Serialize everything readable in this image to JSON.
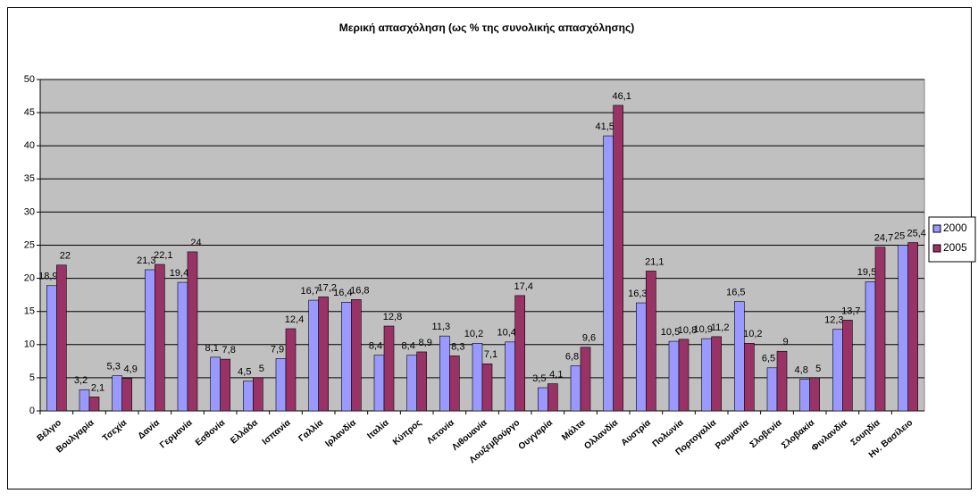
{
  "chart_data": {
    "type": "bar",
    "title": "Μερική απασχόληση (ως % της συνολικής απασχόλησης)",
    "categories": [
      "Βέλγιο",
      "Βουλγαρία",
      "Τσεχία",
      "Δανία",
      "Γερμανία",
      "Εσθονία",
      "Ελλάδα",
      "Ισπανία",
      "Γαλλία",
      "Ιρλανδία",
      "Ιταλία",
      "Κύπρος",
      "Λετονία",
      "Λιθουανία",
      "Λουξεμβούργο",
      "Ουγγαρία",
      "Μάλτα",
      "Ολλανδία",
      "Αυστρία",
      "Πολωνία",
      "Πορτογαλία",
      "Ρουμανία",
      "Σλοβενία",
      "Σλοβακία",
      "Φινλανδία",
      "Σουηδία",
      "Ην. Βασίλειο"
    ],
    "series": [
      {
        "name": "2000",
        "color": "#9999ff",
        "values": [
          18.9,
          3.2,
          5.3,
          21.3,
          19.4,
          8.1,
          4.5,
          7.9,
          16.7,
          16.4,
          8.4,
          8.4,
          11.3,
          10.2,
          10.4,
          3.5,
          6.8,
          41.5,
          16.3,
          10.5,
          10.9,
          16.5,
          6.5,
          4.8,
          12.3,
          19.5,
          25
        ],
        "value_labels": [
          "18,9",
          "3,2",
          "5,3",
          "21,3",
          "19,4",
          "8,1",
          "4,5",
          "7,9",
          "16,7",
          "16,4",
          "8,4",
          "8,4",
          "11,3",
          "10,2",
          "10,4",
          "3,5",
          "6,8",
          "41,5",
          "16,3",
          "10,5",
          "10,9",
          "16,5",
          "6,5",
          "4,8",
          "12,3",
          "19,5",
          "25"
        ]
      },
      {
        "name": "2005",
        "color": "#993366",
        "values": [
          22,
          2.1,
          4.9,
          22.1,
          24,
          7.8,
          5,
          12.4,
          17.2,
          16.8,
          12.8,
          8.9,
          8.3,
          7.1,
          17.4,
          4.1,
          9.6,
          46.1,
          21.1,
          10.8,
          11.2,
          10.2,
          9,
          5,
          13.7,
          24.7,
          25.4
        ],
        "value_labels": [
          "22",
          "2,1",
          "4,9",
          "22,1",
          "24",
          "7,8",
          "5",
          "12,4",
          "17,2",
          "16,8",
          "12,8",
          "8,9",
          "8,3",
          "7,1",
          "17,4",
          "4,1",
          "9,6",
          "46,1",
          "21,1",
          "10,8",
          "11,2",
          "10,2",
          "9",
          "5",
          "13,7",
          "24,7",
          "25,4"
        ]
      }
    ],
    "ylim": [
      0,
      50
    ],
    "yticks": [
      0,
      5,
      10,
      15,
      20,
      25,
      30,
      35,
      40,
      45,
      50
    ],
    "grid": true,
    "legend": "right"
  }
}
